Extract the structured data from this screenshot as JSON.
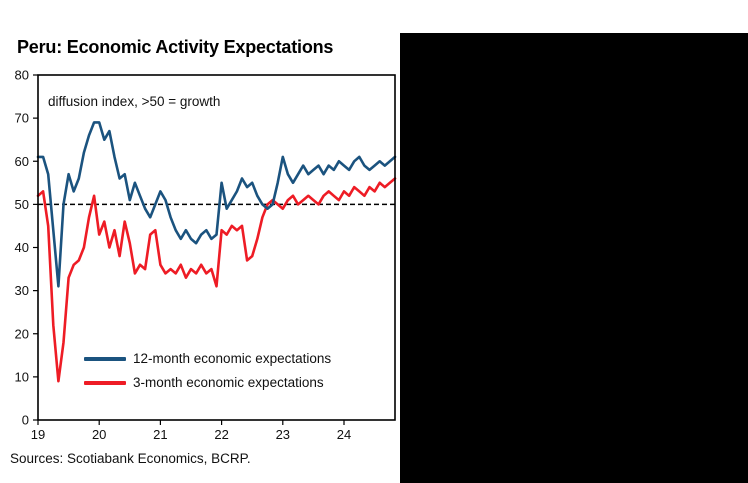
{
  "window": {
    "background_color": "#ffffff",
    "side_panel_color": "#000000"
  },
  "chart": {
    "title": "Peru: Economic Activity Expectations",
    "annotation": "diffusion index, >50 = growth",
    "sources": "Sources: Scotiabank Economics, BCRP."
  },
  "chart_data": {
    "type": "line",
    "title": "Peru: Economic Activity Expectations",
    "subtitle": "diffusion index, >50 = growth",
    "x_tick_labels": [
      "19",
      "20",
      "21",
      "22",
      "23",
      "24"
    ],
    "x_tick_months": [
      0,
      12,
      24,
      36,
      48,
      60
    ],
    "y_ticks": [
      0,
      10,
      20,
      30,
      40,
      50,
      60,
      70,
      80
    ],
    "ylim": [
      0,
      80
    ],
    "reference_line": 50,
    "months_span": 71,
    "grid": false,
    "legend_position": "inside-bottom-left",
    "series": [
      {
        "name": "12-month economic expectations",
        "color": "#1b537f",
        "values": [
          61,
          61,
          57,
          44,
          31,
          50,
          57,
          53,
          56,
          62,
          66,
          69,
          69,
          65,
          67,
          61,
          56,
          57,
          51,
          55,
          52,
          49,
          47,
          50,
          53,
          51,
          47,
          44,
          42,
          44,
          42,
          41,
          43,
          44,
          42,
          43,
          55,
          49,
          51,
          53,
          56,
          54,
          55,
          52,
          50,
          49,
          50,
          55,
          61,
          57,
          55,
          57,
          59,
          57,
          58,
          59,
          57,
          59,
          58,
          60,
          59,
          58,
          60,
          61,
          59,
          58,
          59,
          60,
          59,
          60,
          61
        ]
      },
      {
        "name": "3-month economic expectations",
        "color": "#ee1c25",
        "values": [
          52,
          53,
          45,
          22,
          9,
          18,
          33,
          36,
          37,
          40,
          47,
          52,
          43,
          46,
          40,
          44,
          38,
          46,
          41,
          34,
          36,
          35,
          43,
          44,
          36,
          34,
          35,
          34,
          36,
          33,
          35,
          34,
          36,
          34,
          35,
          31,
          44,
          43,
          45,
          44,
          45,
          37,
          38,
          42,
          47,
          50,
          51,
          50,
          49,
          51,
          52,
          50,
          51,
          52,
          51,
          50,
          52,
          53,
          52,
          51,
          53,
          52,
          54,
          53,
          52,
          54,
          53,
          55,
          54,
          55,
          56
        ]
      }
    ]
  }
}
